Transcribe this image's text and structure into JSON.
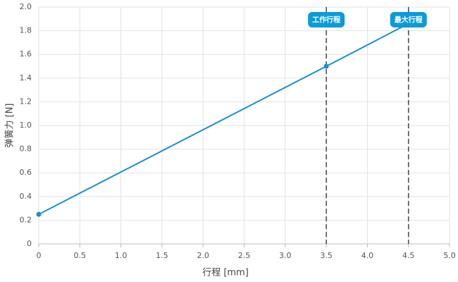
{
  "chart_data": {
    "type": "line",
    "x_label": "行程 [mm]",
    "y_label": "弹簧力 [N]",
    "x": [
      0,
      3.5,
      4.5
    ],
    "series": [
      {
        "color": "#1a8fcf",
        "values": [
          0.25,
          1.5,
          1.86
        ],
        "markers": [
          true,
          true,
          false
        ]
      }
    ],
    "xlim": [
      0,
      5
    ],
    "ylim": [
      0,
      2
    ],
    "xticks": [
      0,
      0.5,
      {
        "value": 1,
        "label": "1.0"
      },
      1.5,
      {
        "value": 2,
        "label": "2.0"
      },
      2.5,
      {
        "value": 3,
        "label": "3.0"
      },
      3.5,
      {
        "value": 4,
        "label": "4.0"
      },
      4.5,
      {
        "value": 5,
        "label": "5.0"
      }
    ],
    "yticks": [
      0,
      0.2,
      0.4,
      0.6,
      0.8,
      {
        "value": 1,
        "label": "1.0"
      },
      1.2,
      1.4,
      1.6,
      1.8,
      {
        "value": 2,
        "label": "2.0"
      }
    ],
    "grid": true,
    "annotations": [
      {
        "x": 3.5,
        "label": "工作行程",
        "color": "#0a9bd8"
      },
      {
        "x": 4.5,
        "label": "最大行程",
        "color": "#0a9bd8"
      }
    ]
  }
}
